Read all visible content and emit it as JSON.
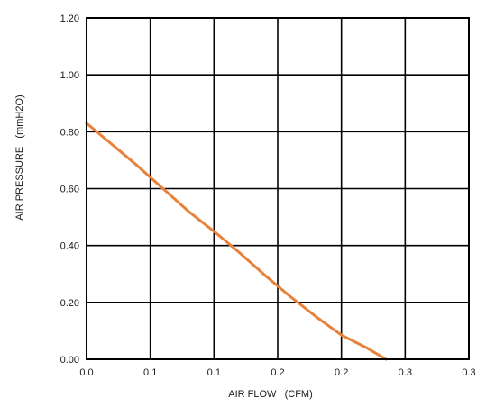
{
  "chart_data": {
    "type": "line",
    "xlabel": "AIR FLOW   (CFM)",
    "ylabel": "AIR PRESSURE   (mmH2O)",
    "xlim": [
      0,
      0.3
    ],
    "ylim": [
      0,
      1.2
    ],
    "x_ticks": [
      "0.0",
      "0.1",
      "0.1",
      "0.2",
      "0.2",
      "0.3",
      "0.3"
    ],
    "y_ticks": [
      "0.00",
      "0.20",
      "0.40",
      "0.60",
      "0.80",
      "1.00",
      "1.20"
    ],
    "grid": true,
    "series": [
      {
        "color": "#e8823a",
        "points": [
          {
            "x": 0.0,
            "y": 0.83
          },
          {
            "x": 0.02,
            "y": 0.755
          },
          {
            "x": 0.04,
            "y": 0.68
          },
          {
            "x": 0.06,
            "y": 0.6
          },
          {
            "x": 0.08,
            "y": 0.52
          },
          {
            "x": 0.1,
            "y": 0.45
          },
          {
            "x": 0.12,
            "y": 0.375
          },
          {
            "x": 0.14,
            "y": 0.295
          },
          {
            "x": 0.16,
            "y": 0.22
          },
          {
            "x": 0.18,
            "y": 0.15
          },
          {
            "x": 0.2,
            "y": 0.085
          },
          {
            "x": 0.22,
            "y": 0.04
          },
          {
            "x": 0.235,
            "y": 0.0
          }
        ]
      }
    ]
  }
}
